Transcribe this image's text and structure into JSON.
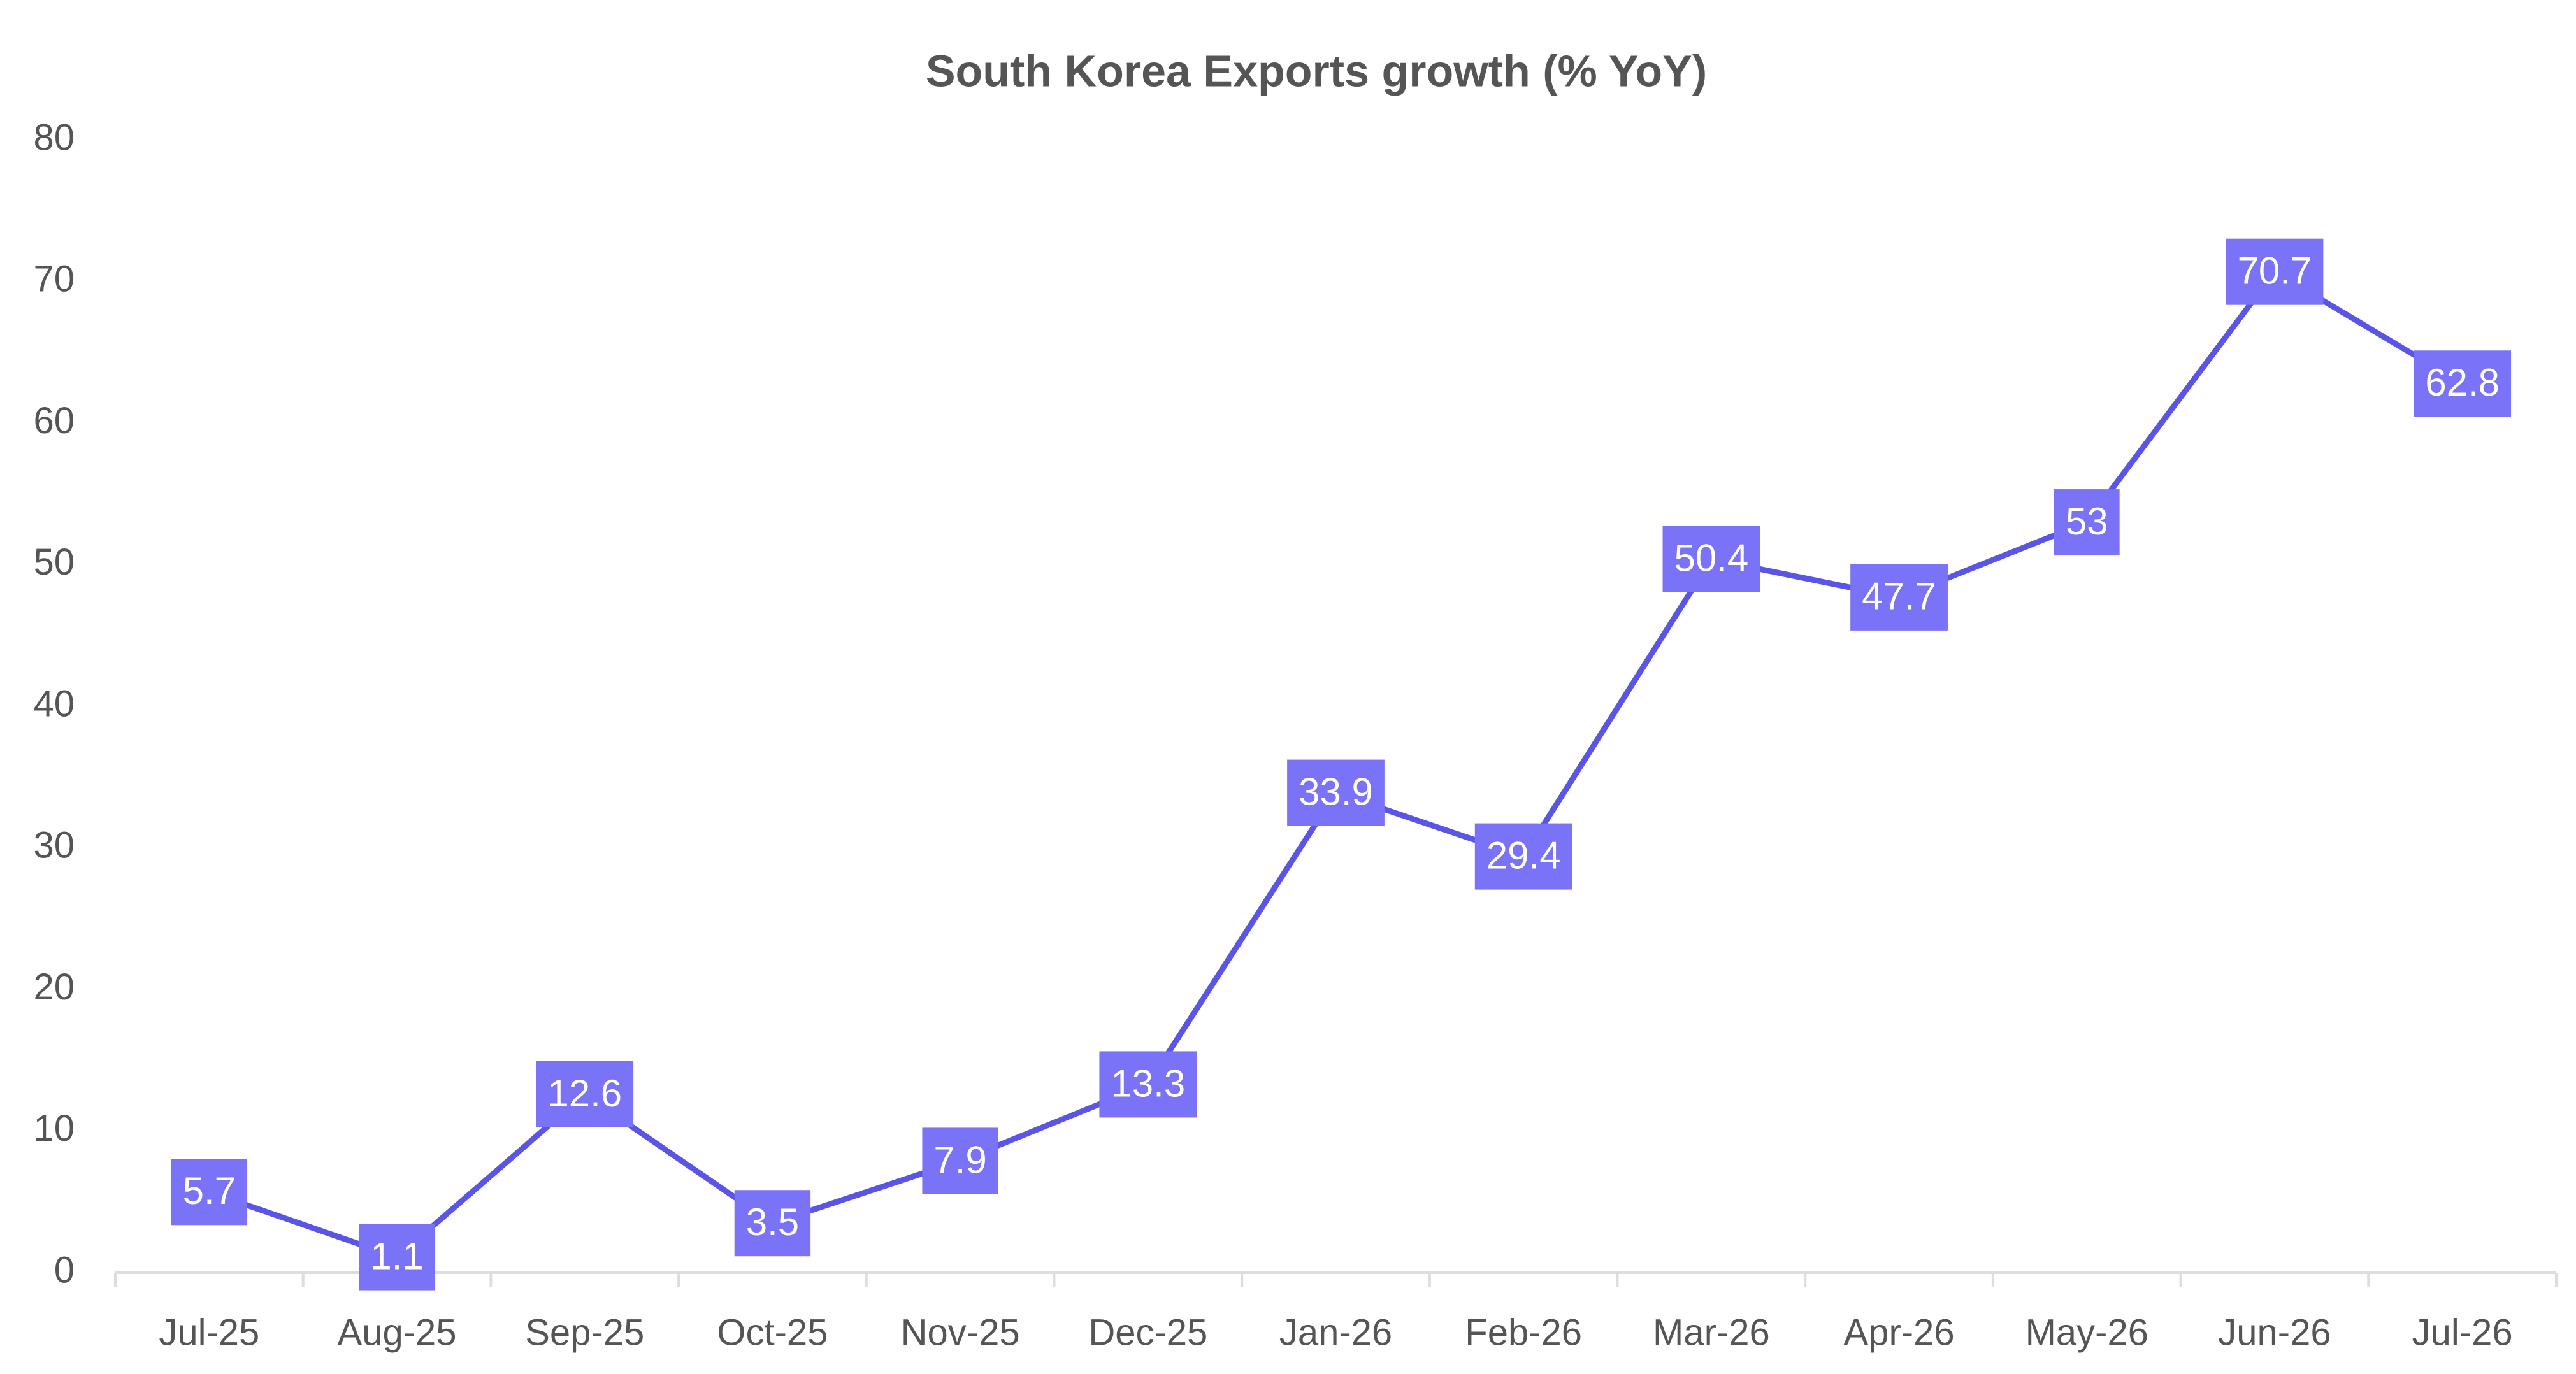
{
  "chart_data": {
    "type": "line",
    "title": "South Korea Exports growth (% YoY)",
    "categories": [
      "Jul-25",
      "Aug-25",
      "Sep-25",
      "Oct-25",
      "Nov-25",
      "Dec-25",
      "Jan-26",
      "Feb-26",
      "Mar-26",
      "Apr-26",
      "May-26",
      "Jun-26",
      "Jul-26"
    ],
    "values": [
      5.7,
      1.1,
      12.6,
      3.5,
      7.9,
      13.3,
      33.9,
      29.4,
      50.4,
      47.7,
      53,
      70.7,
      62.8
    ],
    "color": "#5a55e6",
    "label_color": "#7a72f7",
    "ylim": [
      0,
      80
    ],
    "yticks": [
      0,
      10,
      20,
      30,
      40,
      50,
      60,
      70,
      80
    ],
    "grid": false
  }
}
